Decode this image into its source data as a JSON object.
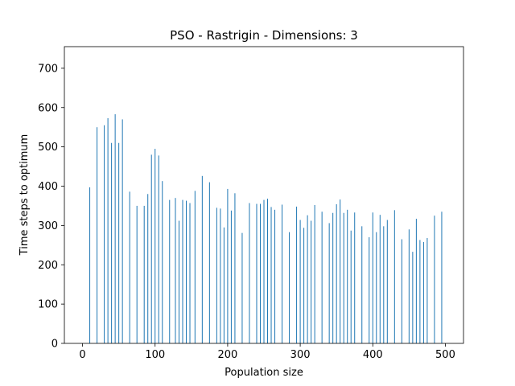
{
  "chart_data": {
    "type": "bar",
    "title": "PSO - Rastrigin - Dimensions: 3",
    "xlabel": "Population size",
    "ylabel": "Time steps to optimum",
    "xlim": [
      -25,
      525
    ],
    "ylim": [
      0,
      755
    ],
    "xticks": [
      0,
      100,
      200,
      300,
      400,
      500
    ],
    "yticks": [
      0,
      100,
      200,
      300,
      400,
      500,
      600,
      700
    ],
    "bar_color": "#1f77b4",
    "grid": false,
    "x": [
      10,
      20,
      30,
      35,
      40,
      45,
      50,
      55,
      65,
      75,
      85,
      90,
      95,
      100,
      105,
      110,
      120,
      128,
      133,
      138,
      143,
      148,
      155,
      165,
      175,
      185,
      190,
      195,
      200,
      205,
      210,
      220,
      230,
      240,
      245,
      250,
      255,
      260,
      265,
      275,
      285,
      295,
      300,
      305,
      310,
      315,
      320,
      330,
      340,
      345,
      350,
      355,
      360,
      365,
      370,
      375,
      385,
      395,
      400,
      405,
      410,
      415,
      420,
      430,
      440,
      450,
      455,
      460,
      465,
      470,
      475,
      485,
      495
    ],
    "values": [
      397,
      550,
      555,
      573,
      510,
      583,
      510,
      570,
      386,
      350,
      350,
      380,
      480,
      495,
      478,
      413,
      365,
      370,
      312,
      365,
      363,
      357,
      388,
      426,
      410,
      345,
      343,
      295,
      393,
      338,
      382,
      281,
      357,
      355,
      355,
      365,
      368,
      347,
      340,
      353,
      283,
      348,
      314,
      294,
      326,
      312,
      352,
      335,
      306,
      332,
      354,
      366,
      332,
      340,
      287,
      333,
      298,
      270,
      333,
      283,
      327,
      298,
      314,
      339,
      265,
      290,
      233,
      317,
      263,
      258,
      268,
      325,
      335
    ]
  }
}
